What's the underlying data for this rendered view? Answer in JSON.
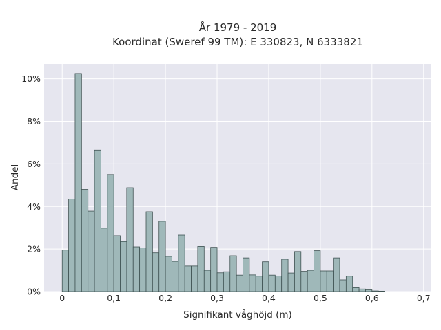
{
  "chart_data": {
    "type": "bar",
    "title_line1": "År 1979 - 2019",
    "title_line2": "Koordinat (Sweref 99 TM): E 330823, N 6333821",
    "xlabel": "Signifikant våghöjd (m)",
    "ylabel": "Andel",
    "xlim": [
      -0.035,
      0.715
    ],
    "ylim": [
      0,
      10.7
    ],
    "bin_start": 0.0,
    "bin_width": 0.0125,
    "x_ticks": [
      {
        "value": 0.0,
        "label": "0"
      },
      {
        "value": 0.1,
        "label": "0,1"
      },
      {
        "value": 0.2,
        "label": "0,2"
      },
      {
        "value": 0.3,
        "label": "0,3"
      },
      {
        "value": 0.4,
        "label": "0,4"
      },
      {
        "value": 0.5,
        "label": "0,5"
      },
      {
        "value": 0.6,
        "label": "0,6"
      },
      {
        "value": 0.7,
        "label": "0,7"
      }
    ],
    "y_ticks": [
      {
        "value": 0,
        "label": "0%"
      },
      {
        "value": 2,
        "label": "2%"
      },
      {
        "value": 4,
        "label": "4%"
      },
      {
        "value": 6,
        "label": "6%"
      },
      {
        "value": 8,
        "label": "8%"
      },
      {
        "value": 10,
        "label": "10%"
      }
    ],
    "values": [
      1.95,
      4.35,
      10.25,
      4.8,
      3.78,
      6.65,
      2.98,
      5.5,
      2.62,
      2.35,
      4.88,
      2.1,
      2.05,
      3.75,
      1.82,
      3.3,
      1.65,
      1.42,
      2.65,
      1.2,
      1.2,
      2.12,
      1.0,
      2.08,
      0.88,
      0.93,
      1.68,
      0.77,
      1.58,
      0.78,
      0.72,
      1.4,
      0.77,
      0.73,
      1.52,
      0.87,
      1.88,
      0.95,
      1.0,
      1.92,
      0.97,
      0.97,
      1.58,
      0.55,
      0.72,
      0.18,
      0.12,
      0.08,
      0.03,
      0.02
    ],
    "bar_color": "#9fb8b9",
    "bar_edge": "#3f5252",
    "plot_bg": "#e6e6ef",
    "grid_color": "#ffffff",
    "grid": true
  }
}
